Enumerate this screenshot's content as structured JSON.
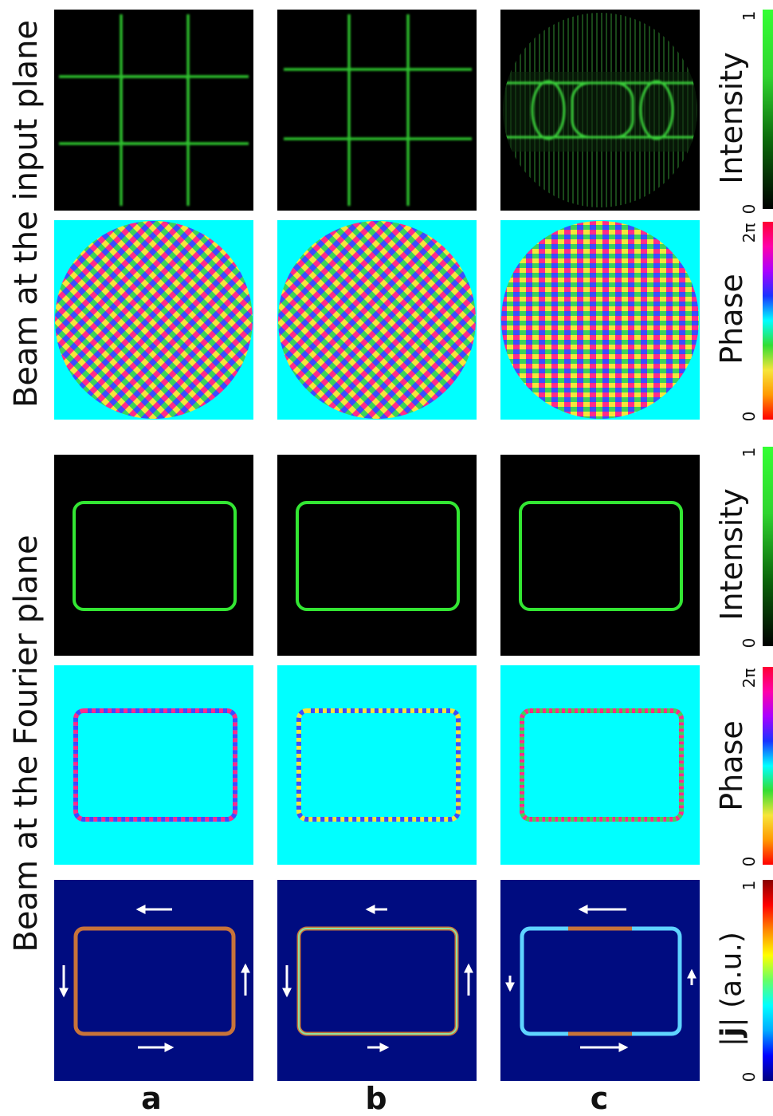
{
  "sections": {
    "input_plane": "Beam at the input plane",
    "fourier_plane": "Beam at the Fourier plane"
  },
  "columns": [
    "a",
    "b",
    "c"
  ],
  "colorbars": {
    "intensity": {
      "title": "Intensity",
      "min": "0",
      "max": "1"
    },
    "phase": {
      "title": "Phase",
      "min": "0",
      "max": "2π"
    },
    "current": {
      "title_prefix": "|",
      "title_symbol": "j",
      "title_suffix": "| (a.u.)",
      "min": "0",
      "max": "1"
    }
  },
  "colors": {
    "intensity_green": "#33ff33",
    "phase_background": "#00ffff",
    "current_background": "#000c80",
    "arrow": "#ffffff"
  }
}
